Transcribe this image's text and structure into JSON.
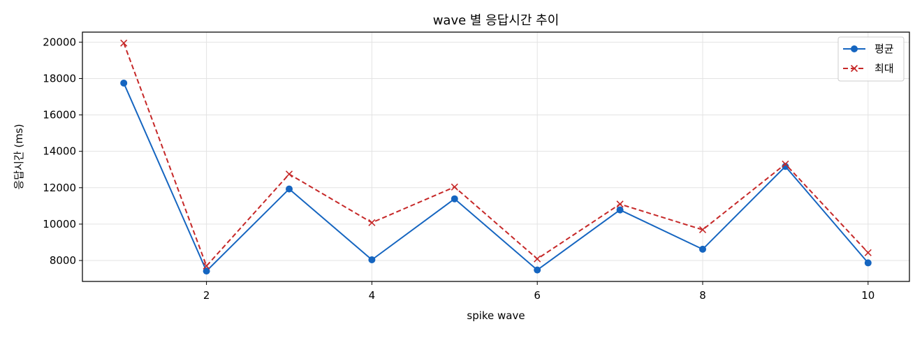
{
  "chart_data": {
    "type": "line",
    "title": "wave 별 응답시간 추이",
    "xlabel": "spike wave",
    "ylabel": "응답시간 (ms)",
    "x": [
      1,
      2,
      3,
      4,
      5,
      6,
      7,
      8,
      9,
      10
    ],
    "xlim": [
      0.5,
      10.5
    ],
    "ylim": [
      6850,
      20550
    ],
    "xticks": [
      2,
      4,
      6,
      8,
      10
    ],
    "yticks": [
      8000,
      10000,
      12000,
      14000,
      16000,
      18000,
      20000
    ],
    "grid": true,
    "legend_position": "top-right",
    "series": [
      {
        "name": "평균",
        "color": "#1565c0",
        "line_style": "solid",
        "marker": "circle",
        "values": [
          17750,
          7420,
          11930,
          8040,
          11390,
          7480,
          10780,
          8620,
          13170,
          7870
        ]
      },
      {
        "name": "최대",
        "color": "#c62828",
        "line_style": "dashed",
        "marker": "x",
        "values": [
          19950,
          7700,
          12750,
          10080,
          12040,
          8090,
          11100,
          9690,
          13300,
          8430
        ]
      }
    ]
  }
}
